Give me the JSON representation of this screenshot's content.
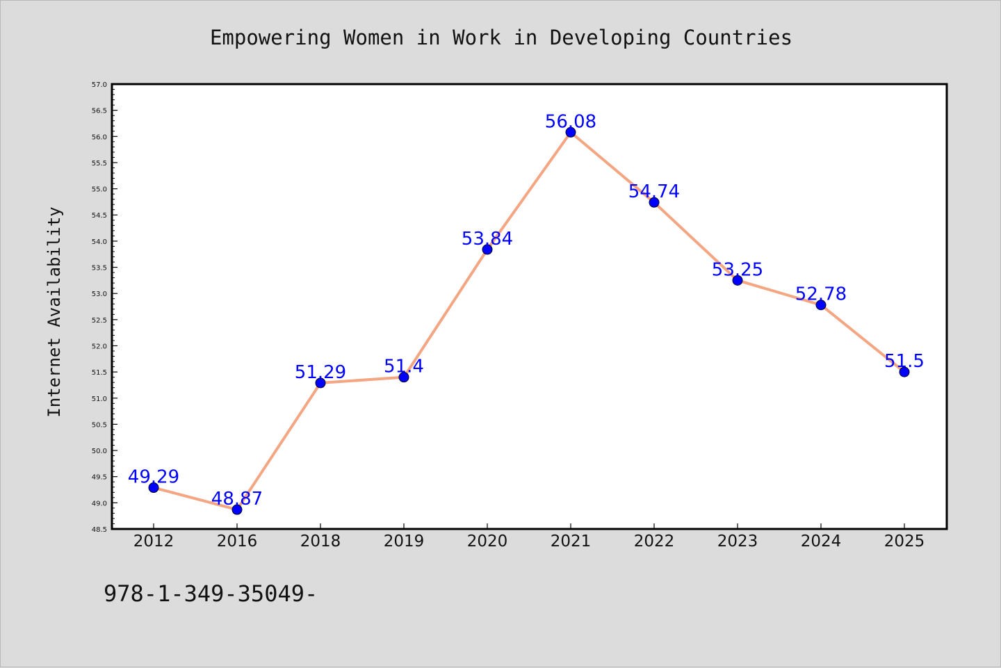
{
  "chart_data": {
    "type": "line",
    "title": "Empowering Women in Work in Developing Countries",
    "xlabel": "",
    "ylabel": "Internet Availability",
    "categories": [
      "2012",
      "2016",
      "2018",
      "2019",
      "2020",
      "2021",
      "2022",
      "2023",
      "2024",
      "2025"
    ],
    "series": [
      {
        "values": [
          49.29,
          48.87,
          51.29,
          51.4,
          53.84,
          56.08,
          54.74,
          53.25,
          52.78,
          51.5
        ],
        "data_labels": [
          "49.29",
          "48.87",
          "51.29",
          "51.4",
          "53.84",
          "56.08",
          "54.74",
          "53.25",
          "52.78",
          "51.5"
        ],
        "line_color": "#f4a582",
        "marker_color": "#0000ff"
      }
    ],
    "ylim": [
      48.5,
      57.0
    ],
    "yticks": [
      "48.5",
      "49.0",
      "49.5",
      "50.0",
      "50.5",
      "51.0",
      "51.5",
      "52.0",
      "52.5",
      "53.0",
      "53.5",
      "54.0",
      "54.5",
      "55.0",
      "55.5",
      "56.0",
      "56.5",
      "57.0"
    ],
    "grid": false,
    "legend": "none"
  },
  "footer": {
    "text": "978-1-349-35049-"
  },
  "colors": {
    "background": "#dcdcdc",
    "plot_background": "#ffffff",
    "line": "#f4a582",
    "marker": "#0000ff",
    "data_label": "#0000ff"
  }
}
